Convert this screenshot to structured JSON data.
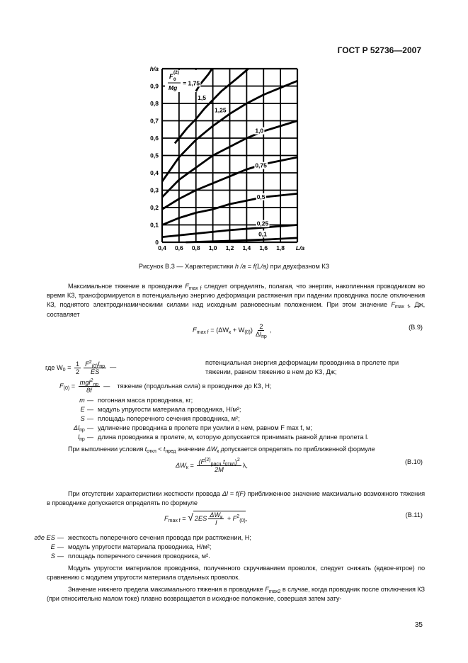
{
  "header": {
    "code": "ГОСТ Р 52736—2007"
  },
  "chart_data": {
    "type": "line",
    "title": "",
    "xlabel": "L/a",
    "ylabel": "h/a",
    "xlim": [
      0.4,
      2.0
    ],
    "ylim": [
      0,
      1.0
    ],
    "grid": true,
    "x_ticks": [
      "0,4",
      "0,6",
      "0,8",
      "1,0",
      "1,2",
      "1,4",
      "1,6",
      "1,8"
    ],
    "y_ticks": [
      "0",
      "0,1",
      "0,2",
      "0,3",
      "0,4",
      "0,5",
      "0,6",
      "0,7",
      "0,8",
      "0,9"
    ],
    "parameter_label": {
      "numerator": "F",
      "sup": "(2)",
      "sub": "0",
      "denominator": "Mg"
    },
    "series": [
      {
        "name": "= 1,75",
        "x": [
          0.8,
          0.85,
          0.9,
          0.95,
          0.99
        ],
        "y": [
          0.87,
          0.91,
          0.94,
          0.97,
          1.0
        ]
      },
      {
        "name": "1,5",
        "x": [
          0.55,
          0.6,
          0.7,
          0.8,
          0.9,
          1.0,
          1.1,
          1.2,
          1.3,
          1.42
        ],
        "y": [
          0.57,
          0.6,
          0.66,
          0.71,
          0.77,
          0.82,
          0.87,
          0.91,
          0.95,
          1.0
        ]
      },
      {
        "name": "1,25",
        "x": [
          0.4,
          0.6,
          0.8,
          1.0,
          1.2,
          1.4,
          1.6,
          1.8,
          2.0
        ],
        "y": [
          0.35,
          0.49,
          0.59,
          0.67,
          0.74,
          0.8,
          0.85,
          0.89,
          0.93
        ]
      },
      {
        "name": "1,0",
        "x": [
          0.4,
          0.6,
          0.8,
          1.0,
          1.2,
          1.4,
          1.6,
          1.8,
          2.0
        ],
        "y": [
          0.26,
          0.36,
          0.43,
          0.5,
          0.55,
          0.6,
          0.64,
          0.67,
          0.7
        ]
      },
      {
        "name": "0,75",
        "x": [
          0.4,
          0.6,
          0.8,
          1.0,
          1.2,
          1.4,
          1.6,
          1.8,
          2.0
        ],
        "y": [
          0.19,
          0.25,
          0.3,
          0.34,
          0.38,
          0.42,
          0.45,
          0.47,
          0.49
        ]
      },
      {
        "name": "0,5",
        "x": [
          0.4,
          0.6,
          0.8,
          1.0,
          1.2,
          1.4,
          1.6,
          1.8,
          2.0
        ],
        "y": [
          0.1,
          0.14,
          0.17,
          0.19,
          0.22,
          0.24,
          0.26,
          0.27,
          0.28
        ]
      },
      {
        "name": "0,25",
        "x": [
          0.4,
          0.8,
          1.2,
          1.6,
          2.0
        ],
        "y": [
          0.03,
          0.05,
          0.07,
          0.085,
          0.1
        ]
      },
      {
        "name": "0,1",
        "x": [
          0.68,
          1.2,
          1.6,
          2.0
        ],
        "y": [
          0.0,
          0.008,
          0.015,
          0.025
        ]
      }
    ]
  },
  "figure": {
    "caption_pre": "Рисунок В.3 — Характеристики ",
    "caption_expr1": "h /a",
    "caption_eq": " = ",
    "caption_expr2": "f(L/a)",
    "caption_post": " при двухфазном КЗ"
  },
  "p1": {
    "a": "Максимальное тяжение в проводнике ",
    "F": "F",
    "sub": "max f",
    "b": " следует определять, полагая, что энергия, накопленная проводником во время КЗ, трансформируется в потенциальную энергию деформации растяжения при падении проводника после отключения КЗ, поднятого электродинамическими силами над исходным равновесным положением. При этом значение ",
    "c": ", Дж, составляет"
  },
  "b9": {
    "F": "F",
    "Fsub": "max f",
    "mid": " = (ΔW",
    "ksub": "к",
    "plus": " + W",
    "w0sub": "(0)",
    "close": ")",
    "num": "2",
    "den": "Δl",
    "densub": "пр",
    "end": ",",
    "label": "(В.9)"
  },
  "defs1": {
    "w0": {
      "lhs": "где W",
      "lhssub": "0",
      "eq": " = ",
      "n1": "1",
      "d1": "2",
      "n2": "F",
      "n2sup": "2",
      "n2sub": "(0)",
      "n2l": "l",
      "n2lsub": "пр",
      "d2": "ES",
      "dash": "—",
      "text": "потенциальная энергия деформации проводника в пролете при тяжении, равном тяжению в нем до КЗ, Дж;"
    },
    "f0": {
      "lhs": "F",
      "lhssub": "(0)",
      "eq": " = ",
      "num": "mgl",
      "numsup": "2",
      "numsub": "пр",
      "den": "8f",
      "dash": "—",
      "text": "тяжение (продольная сила) в проводнике до КЗ, Н;"
    },
    "rows": [
      {
        "sym": "m",
        "sub": "",
        "dash": "—",
        "text": "погонная масса проводника, кг;"
      },
      {
        "sym": "E",
        "sub": "",
        "dash": "—",
        "text": "модуль упругости материала проводника, Н/м²;"
      },
      {
        "sym": "S",
        "sub": "",
        "dash": "—",
        "text": "площадь поперечного сечения проводника, м²;"
      },
      {
        "sym": "Δl",
        "sub": "пр",
        "dash": "—",
        "text": "удлинение проводника в пролете при усилии в нем, равном F max f, м;"
      },
      {
        "sym": "l",
        "sub": "пр",
        "dash": "—",
        "text": "длина проводника в пролете, м, которую допускается принимать равной длине пролета l."
      }
    ]
  },
  "p2": {
    "a": "При выполнении условия ",
    "t1": "t",
    "t1sub": "откл",
    "lt": " < ",
    "t2": "t",
    "t2sub": "пред",
    "b": " значение ",
    "w": "ΔW",
    "wsub": "к",
    "c": " допускается определять по приближенной формуле"
  },
  "b10": {
    "lhs": "ΔW",
    "lhssub": "к",
    "eq": " = ",
    "num_open": "(F",
    "num_sup": "(2)",
    "num_sub": "расч",
    "num_t": " t",
    "num_tsub": "откл",
    "num_close": ")",
    "num_pow": "2",
    "den": "2M",
    "tail": "λ,",
    "label": "(В.10)"
  },
  "p3": {
    "a": "При отсутствии характеристики жесткости провода ",
    "expr": "Δl = f(F)",
    "b": " приближенное значение максимально возможного тяжения в проводнике допускается определять по формуле"
  },
  "b11": {
    "F": "F",
    "Fsub": "max f",
    "eq": " = ",
    "root": "√",
    "t1": "2ES",
    "num": "ΔW",
    "numsub": "к",
    "den": "l",
    "plus": " + F",
    "f0sup": "2",
    "f0sub": "(0)",
    "end": ",",
    "label": "(В.11)"
  },
  "defs2": [
    {
      "sym": "где ES",
      "dash": "—",
      "text": "жесткость поперечного сечения провода при растяжении, Н;"
    },
    {
      "sym": "E",
      "dash": "—",
      "text": "модуль упругости материала проводника, Н/м²;"
    },
    {
      "sym": "S",
      "dash": "—",
      "text": "площадь поперечного сечения проводника, м²."
    }
  ],
  "p4": {
    "text": "Модуль упругости материалов проводника, полученного скручиванием проволок, следует снижать (вдвое-втрое) по сравнению с модулем упругости материала отдельных проволок."
  },
  "p5": {
    "a": "Значение нижнего предела максимального тяжения в проводнике ",
    "F": "F",
    "sub": "max2",
    "b": " в случае, когда проводник после отключения КЗ (при относительно малом токе) плавно возвращается в исходное положение, совершая затем зату-"
  },
  "page_number": "35"
}
